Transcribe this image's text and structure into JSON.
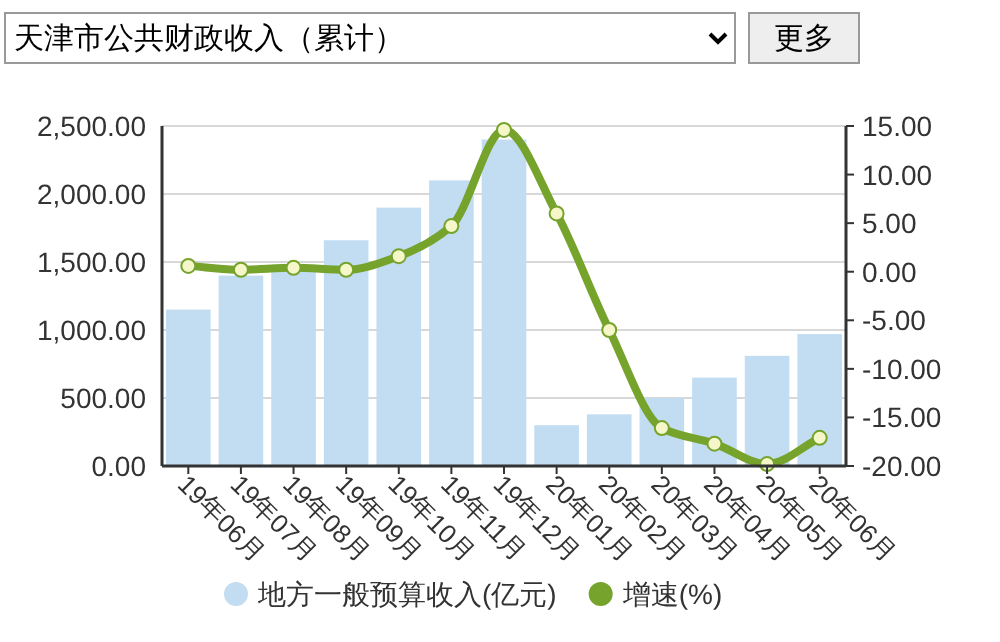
{
  "chart_data": {
    "type": "bar",
    "title": "天津市公共财政收入（累计）",
    "annotations": [
      "更多"
    ],
    "categories": [
      "19年06月",
      "19年07月",
      "19年08月",
      "19年09月",
      "19年10月",
      "19年11月",
      "19年12月",
      "20年01月",
      "20年02月",
      "20年03月",
      "20年04月",
      "20年05月",
      "20年06月"
    ],
    "series": [
      {
        "name": "地方一般预算收入(亿元)",
        "color": "#c2ddf2",
        "values": [
          1150,
          1400,
          1450,
          1660,
          1900,
          2100,
          2400,
          300,
          380,
          500,
          650,
          810,
          970
        ]
      },
      {
        "name": "增速(%)",
        "type": "line",
        "axis": "y2",
        "color": "#76a32c",
        "marker": "circle",
        "values": [
          0.6,
          0.2,
          0.4,
          0.2,
          1.6,
          4.7,
          14.6,
          6.0,
          -6.0,
          -16.1,
          -17.7,
          -19.8,
          -17.1
        ]
      }
    ],
    "ylim": [
      0,
      2500
    ],
    "yticks": [
      {
        "value": 0,
        "label": "0.00"
      },
      {
        "value": 500,
        "label": "500.00"
      },
      {
        "value": 1000,
        "label": "1,000.00"
      },
      {
        "value": 1500,
        "label": "1,500.00"
      },
      {
        "value": 2000,
        "label": "2,000.00"
      },
      {
        "value": 2500,
        "label": "2,500.00"
      }
    ],
    "y2lim": [
      -20,
      15
    ],
    "y2ticks": [
      {
        "value": -20,
        "label": "-20.00"
      },
      {
        "value": -15,
        "label": "-15.00"
      },
      {
        "value": -10,
        "label": "-10.00"
      },
      {
        "value": -5,
        "label": "-5.00"
      },
      {
        "value": 0,
        "label": "0.00"
      },
      {
        "value": 5,
        "label": "5.00"
      },
      {
        "value": 10,
        "label": "10.00"
      },
      {
        "value": 15,
        "label": "15.00"
      }
    ],
    "grid": "y",
    "legend": "bottom"
  }
}
